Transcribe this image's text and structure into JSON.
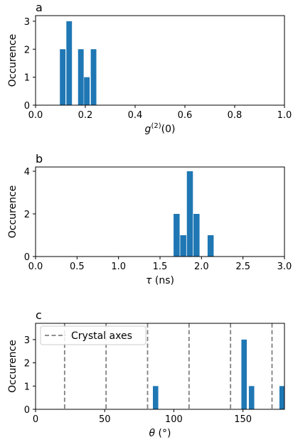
{
  "chart_data": [
    {
      "type": "bar",
      "panel_label": "a",
      "xlabel": "g(2)(0)",
      "ylabel": "Occurence",
      "xlim": [
        0,
        1.0
      ],
      "ylim": [
        0,
        3.2
      ],
      "xticks": [
        0,
        0.2,
        0.4,
        0.6,
        0.8,
        1.0
      ],
      "xtick_labels": [
        "0.0",
        "0.2",
        "0.4",
        "0.6",
        "0.8",
        "1.0"
      ],
      "yticks": [
        0,
        1,
        2,
        3
      ],
      "ytick_labels": [
        "0",
        "1",
        "2",
        "3"
      ],
      "bar_width": 0.0225,
      "color": "#1f77b4",
      "bars": [
        {
          "x": 0.109,
          "value": 2
        },
        {
          "x": 0.135,
          "value": 3
        },
        {
          "x": 0.182,
          "value": 2
        },
        {
          "x": 0.206,
          "value": 1
        },
        {
          "x": 0.233,
          "value": 2
        }
      ],
      "grid": false
    },
    {
      "type": "bar",
      "panel_label": "b",
      "xlabel": "τ (ns)",
      "ylabel": "Occurence",
      "xlim": [
        0,
        3.0
      ],
      "ylim": [
        0,
        4.2
      ],
      "xticks": [
        0,
        0.5,
        1.0,
        1.5,
        2.0,
        2.5,
        3.0
      ],
      "xtick_labels": [
        "0.0",
        "0.5",
        "1.0",
        "1.5",
        "2.0",
        "2.5",
        "3.0"
      ],
      "yticks": [
        0,
        2,
        4
      ],
      "ytick_labels": [
        "0",
        "2",
        "4"
      ],
      "bar_width": 0.073,
      "color": "#1f77b4",
      "bars": [
        {
          "x": 1.7,
          "value": 2
        },
        {
          "x": 1.78,
          "value": 1
        },
        {
          "x": 1.86,
          "value": 4
        },
        {
          "x": 1.94,
          "value": 2
        },
        {
          "x": 2.11,
          "value": 1
        }
      ],
      "grid": false
    },
    {
      "type": "bar",
      "panel_label": "c",
      "xlabel": "θ (°)",
      "ylabel": "Occurence",
      "xlim": [
        0,
        180
      ],
      "ylim": [
        0,
        3.7
      ],
      "xticks": [
        0,
        50,
        100,
        150
      ],
      "xtick_labels": [
        "0",
        "50",
        "100",
        "150"
      ],
      "yticks": [
        0,
        1,
        2,
        3
      ],
      "ytick_labels": [
        "0",
        "1",
        "2",
        "3"
      ],
      "bar_width": 3.9,
      "color": "#1f77b4",
      "bars": [
        {
          "x": 86.8,
          "value": 1
        },
        {
          "x": 150.8,
          "value": 3
        },
        {
          "x": 156.2,
          "value": 1
        },
        {
          "x": 178.3,
          "value": 1
        }
      ],
      "reference_lines": {
        "name": "Crystal axes",
        "color": "#808080",
        "style": "dashed",
        "x": [
          21,
          51,
          81,
          111,
          141,
          171
        ]
      },
      "legend": {
        "entries": [
          "Crystal axes"
        ],
        "placement": "top-left"
      },
      "grid": false
    }
  ]
}
